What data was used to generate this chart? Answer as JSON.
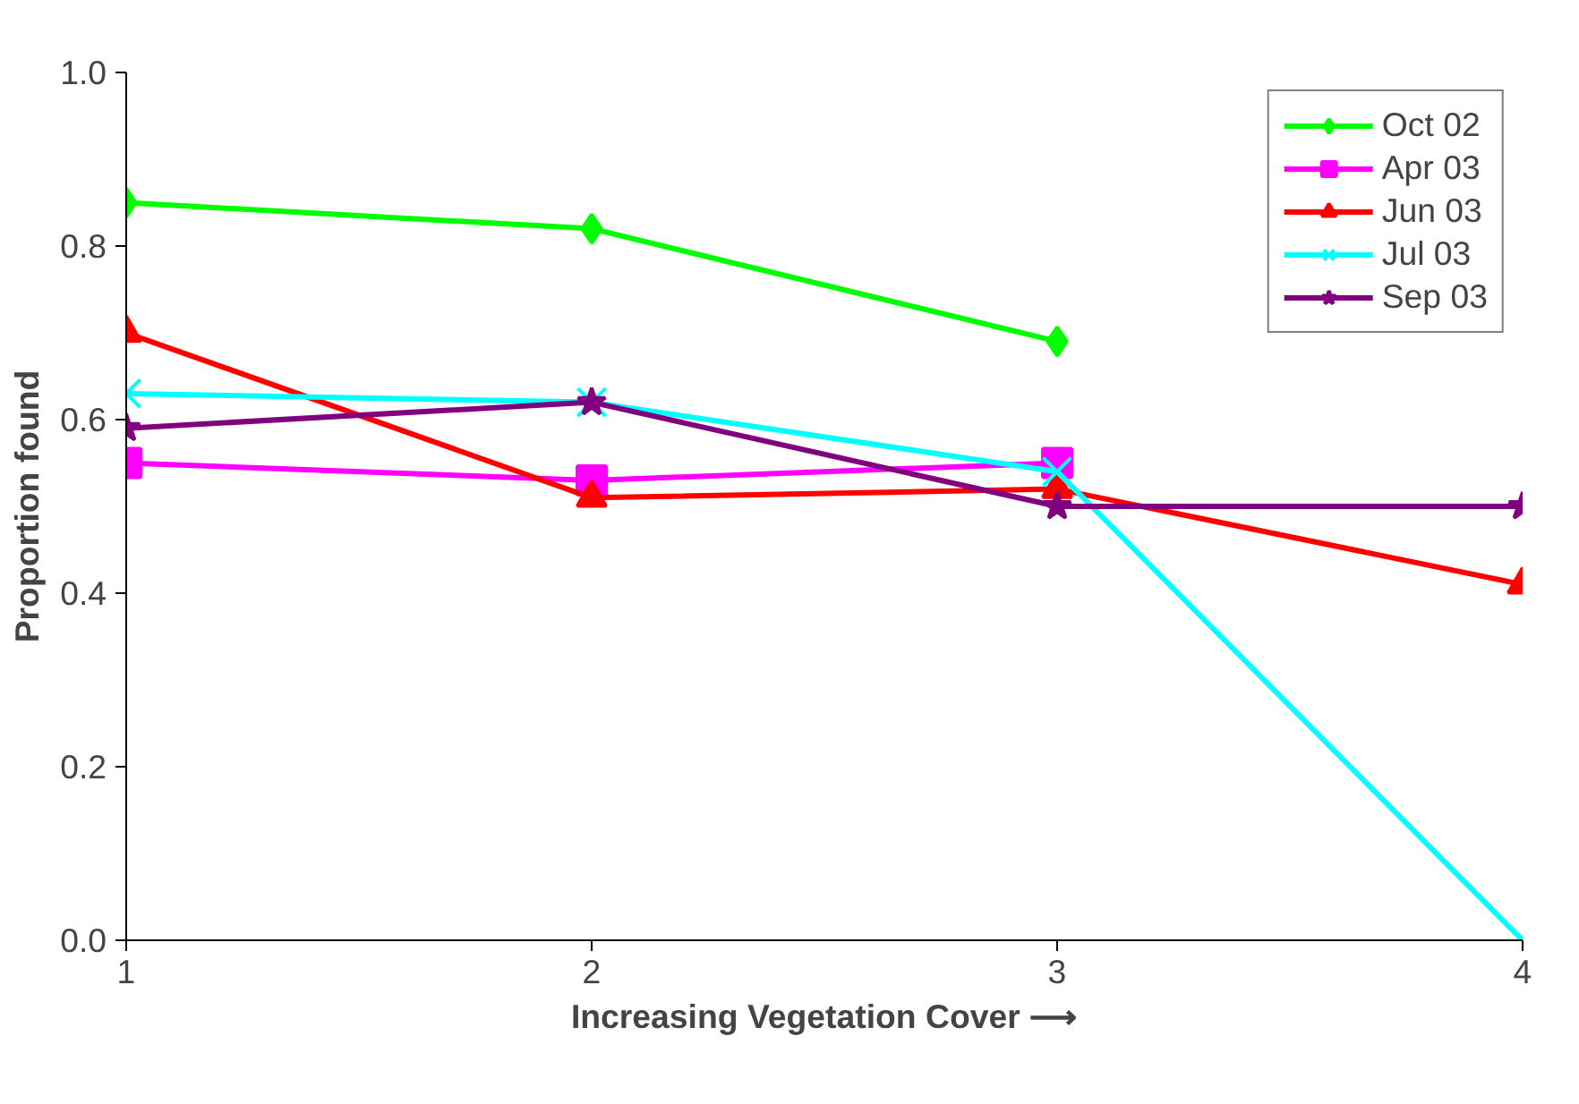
{
  "chart_data": {
    "type": "line",
    "xlabel": "Increasing Vegetation Cover ⟶",
    "ylabel": "Proportion found",
    "x": [
      1,
      2,
      3,
      4
    ],
    "series": [
      {
        "name": "Oct 02",
        "color": "#00ff00",
        "marker": "diamond",
        "values": [
          0.85,
          0.82,
          0.69,
          null
        ]
      },
      {
        "name": "Apr 03",
        "color": "#ff00ff",
        "marker": "square",
        "values": [
          0.55,
          0.53,
          0.55,
          null
        ]
      },
      {
        "name": "Jun 03",
        "color": "#ff0000",
        "marker": "triangle",
        "values": [
          0.7,
          0.51,
          0.52,
          0.41
        ]
      },
      {
        "name": "Jul 03",
        "color": "#00ffff",
        "marker": "cross",
        "values": [
          0.63,
          0.62,
          0.54,
          0.0
        ]
      },
      {
        "name": "Sep 03",
        "color": "#800080",
        "marker": "star",
        "values": [
          0.59,
          0.62,
          0.5,
          0.5
        ]
      }
    ],
    "xlim": [
      1,
      4
    ],
    "xticks": [
      1,
      2,
      3,
      4
    ],
    "ylim": [
      0,
      1
    ],
    "yticks": [
      {
        "value": 0,
        "label": "0.0"
      },
      {
        "value": 0.2,
        "label": "0.2"
      },
      {
        "value": 0.4,
        "label": "0.4"
      },
      {
        "value": 0.6,
        "label": "0.6"
      },
      {
        "value": 0.8,
        "label": "0.8"
      },
      {
        "value": 1,
        "label": "1.0"
      }
    ],
    "grid": false,
    "legend": "top right",
    "line_style": "solid"
  }
}
